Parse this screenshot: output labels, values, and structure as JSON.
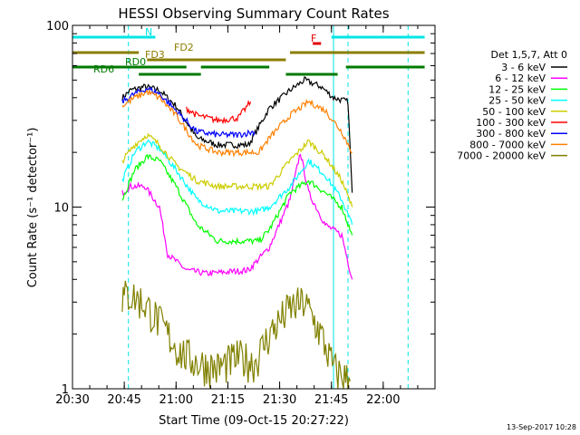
{
  "chart_data": {
    "type": "line",
    "title": "HESSI Observing Summary Count Rates",
    "xlabel": "Start Time (09-Oct-15 20:27:22)",
    "ylabel": "Count Rate (s⁻¹ detector⁻¹)",
    "yscale": "log",
    "ylim": [
      1,
      100
    ],
    "xlim_minutes": [
      20.5,
      22.25
    ],
    "x_ticks": [
      "20:30",
      "20:45",
      "21:00",
      "21:15",
      "21:30",
      "21:45",
      "22:00"
    ],
    "y_ticks": [
      "1",
      "10",
      "100"
    ],
    "legend_title": "Det 1,5,7, Att 0",
    "legend_position": "right",
    "footer": "13-Sep-2017 10:28",
    "flags": [
      {
        "label": "N",
        "color": "#00e5e5",
        "segments": [
          [
            20.5,
            20.9
          ],
          [
            21.75,
            22.2
          ]
        ]
      },
      {
        "label": "F",
        "color": "#e00000",
        "segments": [
          [
            21.66,
            21.7
          ]
        ]
      },
      {
        "label": "FD2",
        "color": "#8b7d00",
        "segments": [
          [
            20.5,
            20.82
          ],
          [
            21.55,
            22.2
          ]
        ]
      },
      {
        "label": "FD3",
        "color": "#8b7d00",
        "segments": [
          [
            20.86,
            21.53
          ]
        ]
      },
      {
        "label": "RD0",
        "color": "#007a00",
        "segments": [
          [
            20.5,
            21.05
          ],
          [
            21.12,
            21.45
          ],
          [
            21.82,
            22.2
          ]
        ]
      },
      {
        "label": "RD6",
        "color": "#007a00",
        "segments": [
          [
            20.82,
            21.12
          ],
          [
            21.53,
            21.78
          ]
        ]
      }
    ],
    "vlines": [
      {
        "x": 20.5,
        "color": "#00e5e5",
        "style": "solid"
      },
      {
        "x": 20.77,
        "color": "#00e5e5",
        "style": "dashed"
      },
      {
        "x": 21.76,
        "color": "#00e5e5",
        "style": "solid"
      },
      {
        "x": 21.83,
        "color": "#00e5e5",
        "style": "dashed"
      },
      {
        "x": 22.12,
        "color": "#00e5e5",
        "style": "dashed"
      }
    ],
    "series": [
      {
        "name": "3 - 6 keV",
        "color": "#000000",
        "x": [
          20.74,
          20.78,
          20.85,
          20.92,
          21.0,
          21.1,
          21.2,
          21.28,
          21.35,
          21.45,
          21.55,
          21.62,
          21.7,
          21.76,
          21.83,
          21.85
        ],
        "y": [
          40,
          44,
          46,
          44,
          36,
          24,
          22,
          22,
          22,
          35,
          44,
          50,
          46,
          40,
          38,
          12
        ]
      },
      {
        "name": "6 - 12 keV",
        "color": "#ff00ff",
        "x": [
          20.74,
          20.78,
          20.85,
          20.92,
          20.96,
          21.05,
          21.15,
          21.25,
          21.35,
          21.45,
          21.55,
          21.6,
          21.64,
          21.72,
          21.8,
          21.85
        ],
        "y": [
          12,
          13,
          13,
          10,
          5.5,
          4.5,
          4.3,
          4.4,
          4.5,
          6,
          11,
          20,
          12,
          8,
          7,
          4
        ]
      },
      {
        "name": "12 - 25 keV",
        "color": "#00ff00",
        "x": [
          20.74,
          20.8,
          20.86,
          20.92,
          21.0,
          21.1,
          21.2,
          21.3,
          21.4,
          21.45,
          21.55,
          21.64,
          21.72,
          21.8,
          21.85
        ],
        "y": [
          11,
          16,
          19,
          18,
          13,
          8,
          6.5,
          6.5,
          6.5,
          7.5,
          12,
          14,
          12,
          10,
          7
        ]
      },
      {
        "name": "25 - 50 keV",
        "color": "#00ffff",
        "x": [
          20.74,
          20.8,
          20.86,
          20.92,
          21.0,
          21.1,
          21.2,
          21.3,
          21.4,
          21.45,
          21.55,
          21.64,
          21.72,
          21.8,
          21.85
        ],
        "y": [
          14,
          20,
          23,
          21,
          16,
          11,
          9.5,
          9.5,
          9.5,
          10,
          13,
          18,
          15,
          11,
          8
        ]
      },
      {
        "name": "50 - 100 keV",
        "color": "#cccc00",
        "x": [
          20.74,
          20.8,
          20.86,
          20.92,
          21.0,
          21.1,
          21.2,
          21.3,
          21.4,
          21.45,
          21.55,
          21.64,
          21.72,
          21.8,
          21.85
        ],
        "y": [
          18,
          22,
          25,
          22,
          17,
          14,
          13,
          13,
          13,
          13,
          18,
          23,
          19,
          14,
          10
        ]
      },
      {
        "name": "100 - 300 keV",
        "color": "#ff0000",
        "x": [
          21.05,
          21.1,
          21.2,
          21.3,
          21.36
        ],
        "y": [
          35,
          32,
          30,
          31,
          38
        ]
      },
      {
        "name": "300 - 800 keV",
        "color": "#0000ff",
        "x": [
          20.74,
          20.8,
          20.86,
          20.92,
          21.0,
          21.1,
          21.2,
          21.3,
          21.38
        ],
        "y": [
          38,
          42,
          45,
          42,
          34,
          26,
          25,
          25,
          26
        ]
      },
      {
        "name": "800 - 7000 keV",
        "color": "#ff8000",
        "x": [
          20.74,
          20.8,
          20.86,
          20.92,
          21.0,
          21.1,
          21.2,
          21.3,
          21.4,
          21.45,
          21.55,
          21.64,
          21.72,
          21.8,
          21.85
        ],
        "y": [
          36,
          40,
          43,
          40,
          32,
          22,
          20,
          20,
          20,
          24,
          32,
          38,
          34,
          26,
          20
        ]
      },
      {
        "name": "7000 - 20000 keV",
        "color": "#808000",
        "x": [
          20.74,
          20.78,
          20.84,
          20.9,
          20.96,
          21.02,
          21.1,
          21.2,
          21.3,
          21.38,
          21.45,
          21.55,
          21.62,
          21.7,
          21.76,
          21.84
        ],
        "y": [
          3.2,
          3.3,
          3.0,
          2.5,
          2.0,
          1.6,
          1.4,
          1.3,
          1.5,
          1.4,
          2.0,
          2.8,
          3.0,
          2.0,
          1.3,
          1.1
        ]
      }
    ]
  }
}
